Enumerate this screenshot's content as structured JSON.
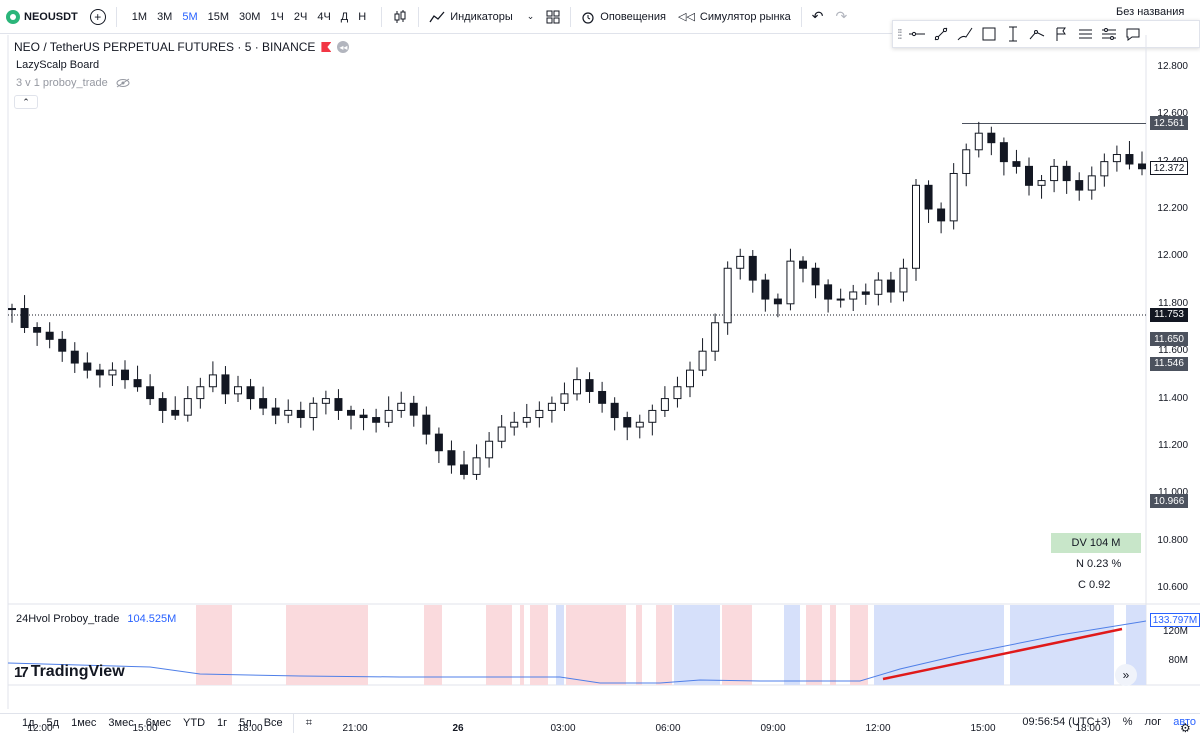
{
  "toolbar": {
    "symbol": "NEOUSDT",
    "timeframes": [
      "1М",
      "3М",
      "5М",
      "15М",
      "30М",
      "1Ч",
      "2Ч",
      "4Ч",
      "Д",
      "Н"
    ],
    "active_timeframe": "5М",
    "indicators_label": "Индикаторы",
    "alerts_label": "Оповещения",
    "replay_label": "Симулятор рынка",
    "unsaved_label": "Без названия"
  },
  "drawing_tools": [
    "grip-icon",
    "horizontal-line-icon",
    "trend-line-icon",
    "brush-icon",
    "rectangle-icon",
    "vertical-line-icon",
    "path-icon",
    "flag-icon",
    "list-icon",
    "settings-lines-icon",
    "note-icon"
  ],
  "chart": {
    "title": "NEO / TetherUS PERPETUAL FUTURES · 5 · BINANCE",
    "indicator1": "LazyScalp Board",
    "indicator2": "3 v 1 proboy_trade",
    "price_labels": [
      "12.800",
      "12.600",
      "12.400",
      "12.200",
      "12.000",
      "11.800",
      "11.600",
      "11.400",
      "11.200",
      "11.000",
      "10.800",
      "10.600"
    ],
    "tags": [
      {
        "label": "12.561",
        "color": "#4c525e"
      },
      {
        "label": "12.372",
        "color": "#ffffff"
      },
      {
        "label": "11.753",
        "color": "#131722"
      },
      {
        "label": "11.650",
        "color": "#4c525e"
      },
      {
        "label": "11.546",
        "color": "#4c525e"
      },
      {
        "label": "10.966",
        "color": "#4c525e"
      }
    ],
    "board": {
      "dv": "DV 104 M",
      "n": "N 0.23 %",
      "c": "C  0.92"
    },
    "sub_indicator": {
      "name": "24Hvol Proboy_trade",
      "value": "104.525M",
      "scale": [
        "133.797M",
        "120M",
        "80M"
      ]
    },
    "branding": "TradingView",
    "time_labels": [
      "12:00",
      "15:00",
      "18:00",
      "21:00",
      "26",
      "03:00",
      "06:00",
      "09:00",
      "12:00",
      "15:00",
      "18:00"
    ]
  },
  "chart_data": {
    "type": "candlestick",
    "ylim": [
      10.55,
      12.85
    ],
    "close_series": [
      11.78,
      11.7,
      11.68,
      11.65,
      11.6,
      11.55,
      11.52,
      11.5,
      11.52,
      11.48,
      11.45,
      11.4,
      11.35,
      11.33,
      11.4,
      11.45,
      11.5,
      11.42,
      11.45,
      11.4,
      11.36,
      11.33,
      11.35,
      11.32,
      11.38,
      11.4,
      11.35,
      11.33,
      11.32,
      11.3,
      11.35,
      11.38,
      11.33,
      11.25,
      11.18,
      11.12,
      11.08,
      11.15,
      11.22,
      11.28,
      11.3,
      11.32,
      11.35,
      11.38,
      11.42,
      11.48,
      11.43,
      11.38,
      11.32,
      11.28,
      11.3,
      11.35,
      11.4,
      11.45,
      11.52,
      11.6,
      11.72,
      11.95,
      12.0,
      11.9,
      11.82,
      11.8,
      11.98,
      11.95,
      11.88,
      11.82,
      11.82,
      11.85,
      11.84,
      11.9,
      11.85,
      11.95,
      12.3,
      12.2,
      12.15,
      12.35,
      12.45,
      12.52,
      12.48,
      12.4,
      12.38,
      12.3,
      12.32,
      12.38,
      12.32,
      12.28,
      12.34,
      12.4,
      12.43,
      12.39,
      12.37
    ],
    "levels": [
      12.561,
      11.753
    ],
    "sub_series": "24h volume line with red/blue background zones"
  },
  "bottom": {
    "ranges": [
      "1д",
      "5д",
      "1мес",
      "3мес",
      "6мес",
      "YTD",
      "1г",
      "5л",
      "Все"
    ],
    "clock": "09:56:54 (UTC+3)",
    "pct": "%",
    "log": "лог",
    "auto": "авто"
  }
}
